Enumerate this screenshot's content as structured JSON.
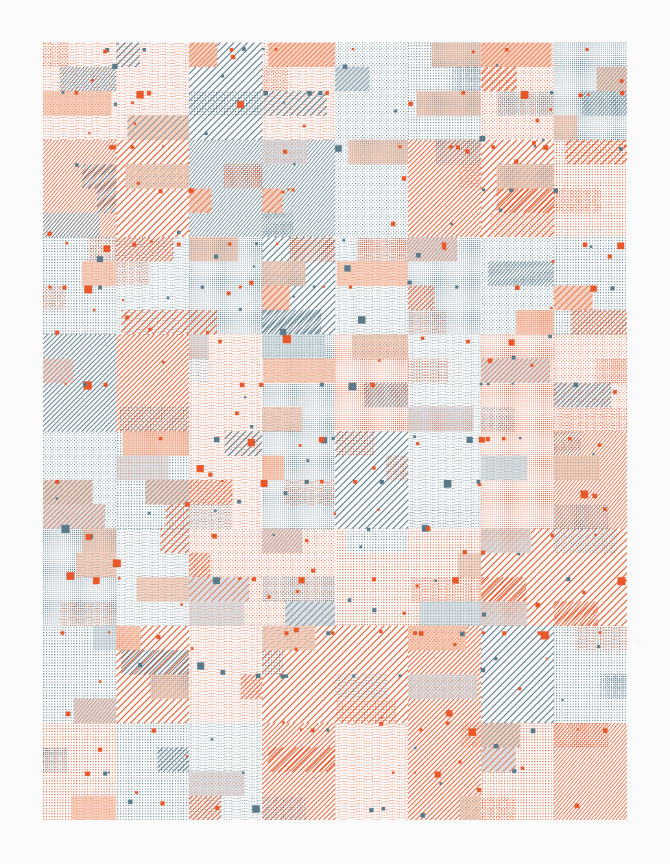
{
  "artwork": {
    "kind": "generative patterned grid",
    "grid": {
      "columns": 8,
      "rows": 8,
      "sub_rows": 4
    },
    "colors": {
      "background": "#fbfbfb",
      "orange": "#e8582a",
      "slate": "#5a7a8a",
      "orange_light": "#f6cbb6",
      "slate_light": "#d4dde2"
    },
    "patterns": [
      "diagonal-hatch",
      "dense-dots",
      "sparse-dots",
      "wavy-lines",
      "light-fill",
      "blank"
    ],
    "square_markers": {
      "colors": [
        "orange",
        "slate"
      ],
      "count_hint": 320
    }
  }
}
